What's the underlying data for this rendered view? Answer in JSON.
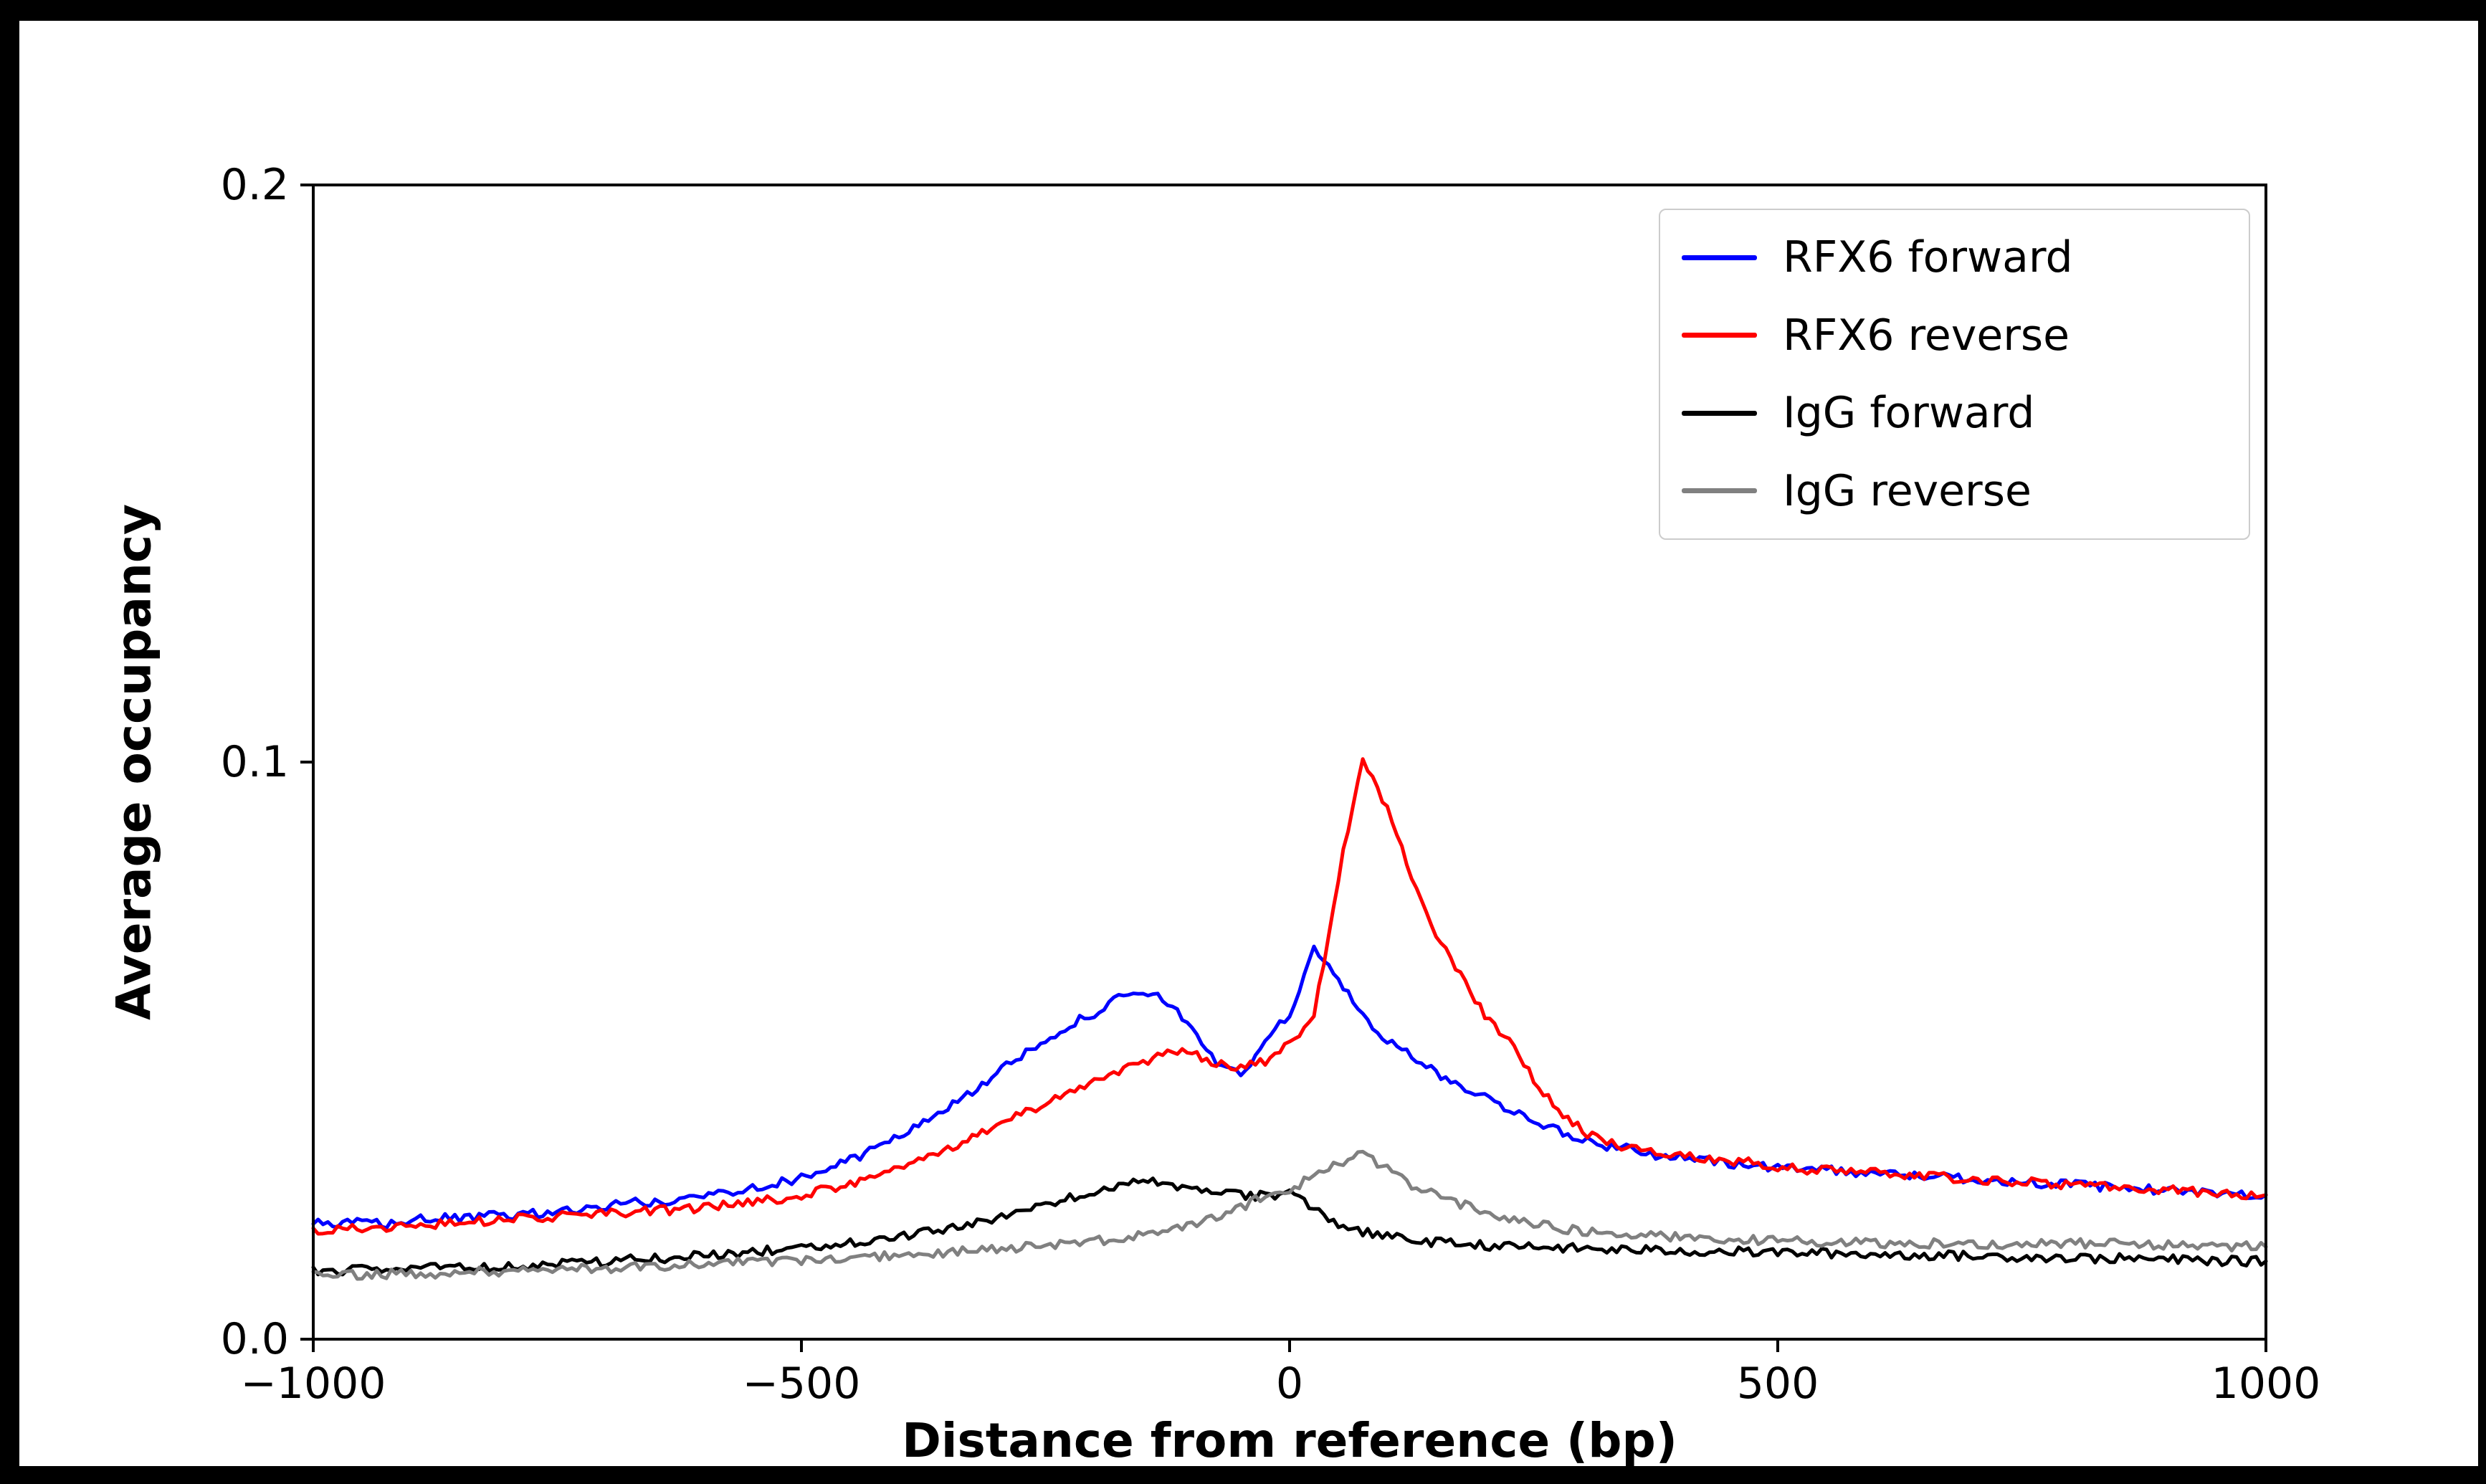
{
  "figure": {
    "background": "#ffffff",
    "frame_color": "#000000"
  },
  "chart_data": {
    "type": "line",
    "title": "",
    "xlabel": "Distance from reference (bp)",
    "ylabel": "Average occupancy",
    "xlim": [
      -1000,
      1000
    ],
    "ylim": [
      0,
      0.2
    ],
    "grid": false,
    "legend_position": "upper right",
    "xticks": {
      "values": [
        -1000,
        -500,
        0,
        500,
        1000
      ],
      "labels": [
        "−1000",
        "−500",
        "0",
        "500",
        "1000"
      ]
    },
    "yticks": {
      "values": [
        0,
        0.1,
        0.2
      ],
      "labels": [
        "0.0",
        "0.1",
        "0.2"
      ]
    },
    "x_start": -1000,
    "x_step": 25,
    "series": [
      {
        "name": "RFX6 forward",
        "color": "#0000ff",
        "values": [
          0.02,
          0.0198,
          0.0202,
          0.02,
          0.0205,
          0.021,
          0.0208,
          0.0212,
          0.0215,
          0.0218,
          0.022,
          0.0225,
          0.023,
          0.024,
          0.0235,
          0.024,
          0.025,
          0.0255,
          0.0265,
          0.027,
          0.028,
          0.0295,
          0.031,
          0.033,
          0.035,
          0.038,
          0.04,
          0.043,
          0.046,
          0.049,
          0.052,
          0.0545,
          0.0565,
          0.059,
          0.06,
          0.0585,
          0.054,
          0.048,
          0.0455,
          0.052,
          0.056,
          0.068,
          0.062,
          0.056,
          0.052,
          0.049,
          0.046,
          0.044,
          0.042,
          0.04,
          0.038,
          0.036,
          0.0345,
          0.0335,
          0.033,
          0.032,
          0.0315,
          0.031,
          0.0305,
          0.03,
          0.0295,
          0.03,
          0.0295,
          0.029,
          0.0288,
          0.0285,
          0.0283,
          0.028,
          0.0278,
          0.0275,
          0.0272,
          0.027,
          0.0268,
          0.0265,
          0.0262,
          0.026,
          0.0258,
          0.0255,
          0.0253,
          0.0252,
          0.025
        ]
      },
      {
        "name": "RFX6 reverse",
        "color": "#ff0000",
        "values": [
          0.019,
          0.0192,
          0.019,
          0.0195,
          0.0198,
          0.02,
          0.0202,
          0.0205,
          0.0208,
          0.021,
          0.0212,
          0.0215,
          0.0218,
          0.022,
          0.0222,
          0.0225,
          0.0228,
          0.0232,
          0.0238,
          0.0242,
          0.025,
          0.026,
          0.027,
          0.028,
          0.0295,
          0.031,
          0.033,
          0.035,
          0.037,
          0.039,
          0.041,
          0.043,
          0.045,
          0.0465,
          0.048,
          0.05,
          0.0495,
          0.048,
          0.047,
          0.048,
          0.051,
          0.056,
          0.08,
          0.101,
          0.092,
          0.08,
          0.07,
          0.063,
          0.056,
          0.052,
          0.045,
          0.04,
          0.036,
          0.034,
          0.033,
          0.0325,
          0.032,
          0.0315,
          0.031,
          0.0305,
          0.03,
          0.0295,
          0.0292,
          0.029,
          0.0288,
          0.0285,
          0.0282,
          0.028,
          0.0278,
          0.0275,
          0.0272,
          0.027,
          0.0268,
          0.0265,
          0.0262,
          0.026,
          0.0258,
          0.0256,
          0.0254,
          0.0252,
          0.025
        ]
      },
      {
        "name": "IgG forward",
        "color": "#000000",
        "values": [
          0.012,
          0.0118,
          0.012,
          0.0122,
          0.0121,
          0.0123,
          0.0125,
          0.0124,
          0.0126,
          0.0128,
          0.013,
          0.0132,
          0.0135,
          0.0138,
          0.014,
          0.0142,
          0.0145,
          0.0148,
          0.0152,
          0.0155,
          0.016,
          0.0163,
          0.0167,
          0.0172,
          0.0178,
          0.0185,
          0.0192,
          0.02,
          0.021,
          0.022,
          0.0235,
          0.0245,
          0.0255,
          0.0265,
          0.0272,
          0.027,
          0.0262,
          0.0255,
          0.025,
          0.0248,
          0.0255,
          0.0225,
          0.02,
          0.0185,
          0.0178,
          0.0172,
          0.0168,
          0.0165,
          0.0163,
          0.016,
          0.016,
          0.0158,
          0.0157,
          0.0155,
          0.0155,
          0.0154,
          0.0153,
          0.0152,
          0.0152,
          0.0151,
          0.015,
          0.015,
          0.0149,
          0.0148,
          0.0147,
          0.0146,
          0.0146,
          0.0145,
          0.0144,
          0.0143,
          0.0143,
          0.0142,
          0.0141,
          0.014,
          0.014,
          0.0139,
          0.0138,
          0.0137,
          0.0136,
          0.0135,
          0.0135
        ]
      },
      {
        "name": "IgG reverse",
        "color": "#808080",
        "values": [
          0.011,
          0.0112,
          0.011,
          0.0113,
          0.0115,
          0.0114,
          0.0116,
          0.0118,
          0.0117,
          0.0119,
          0.012,
          0.0122,
          0.0123,
          0.0125,
          0.0126,
          0.0128,
          0.013,
          0.0132,
          0.0133,
          0.0135,
          0.0137,
          0.0139,
          0.0141,
          0.0143,
          0.0145,
          0.0148,
          0.015,
          0.0153,
          0.0156,
          0.0159,
          0.0162,
          0.0166,
          0.017,
          0.0175,
          0.018,
          0.0187,
          0.0195,
          0.021,
          0.0228,
          0.025,
          0.0258,
          0.0285,
          0.0305,
          0.032,
          0.0295,
          0.0268,
          0.0248,
          0.0235,
          0.022,
          0.021,
          0.02,
          0.0193,
          0.0188,
          0.0184,
          0.0181,
          0.0179,
          0.0177,
          0.0175,
          0.0174,
          0.0172,
          0.017,
          0.0169,
          0.0168,
          0.0168,
          0.0167,
          0.0166,
          0.0166,
          0.0165,
          0.0165,
          0.0164,
          0.0165,
          0.0166,
          0.0167,
          0.0166,
          0.0165,
          0.0164,
          0.0163,
          0.0162,
          0.0162,
          0.0161,
          0.016
        ]
      }
    ]
  }
}
